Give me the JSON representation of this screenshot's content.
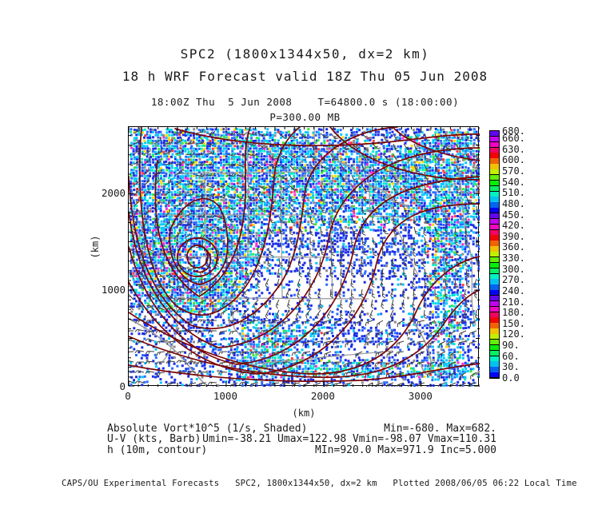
{
  "header": {
    "title_line1": "SPC2 (1800x1344x50, dx=2 km)",
    "title_line2": "18 h WRF Forecast valid 18Z Thu 05 Jun 2008",
    "valid_line": "18:00Z Thu  5 Jun 2008    T=64800.0 s (18:00:00)",
    "level_line": "P=300.00 MB"
  },
  "plot": {
    "x_axis_unit": "(km)",
    "y_axis_unit": "(km)",
    "x_ticks": [
      {
        "v": 0,
        "label": "0"
      },
      {
        "v": 1000,
        "label": "1000"
      },
      {
        "v": 2000,
        "label": "2000"
      },
      {
        "v": 3000,
        "label": "3000"
      }
    ],
    "y_ticks": [
      {
        "v": 0,
        "label": "0"
      },
      {
        "v": 1000,
        "label": "1000"
      },
      {
        "v": 2000,
        "label": "2000"
      }
    ],
    "x_range_km": [
      0,
      3600
    ],
    "y_range_km": [
      0,
      2688
    ]
  },
  "colorbar": {
    "min": 0,
    "max": 680,
    "tick_interval": 30,
    "ticks": [
      {
        "v": 680,
        "label": "680."
      },
      {
        "v": 660,
        "label": "660."
      },
      {
        "v": 630,
        "label": "630."
      },
      {
        "v": 600,
        "label": "600."
      },
      {
        "v": 570,
        "label": "570."
      },
      {
        "v": 540,
        "label": "540."
      },
      {
        "v": 510,
        "label": "510."
      },
      {
        "v": 480,
        "label": "480."
      },
      {
        "v": 450,
        "label": "450."
      },
      {
        "v": 420,
        "label": "420."
      },
      {
        "v": 390,
        "label": "390."
      },
      {
        "v": 360,
        "label": "360."
      },
      {
        "v": 330,
        "label": "330."
      },
      {
        "v": 300,
        "label": "300."
      },
      {
        "v": 270,
        "label": "270."
      },
      {
        "v": 240,
        "label": "240."
      },
      {
        "v": 210,
        "label": "210."
      },
      {
        "v": 180,
        "label": "180."
      },
      {
        "v": 150,
        "label": "150."
      },
      {
        "v": 120,
        "label": "120."
      },
      {
        "v": 90,
        "label": "90."
      },
      {
        "v": 60,
        "label": "60."
      },
      {
        "v": 30,
        "label": "30."
      },
      {
        "v": 0,
        "label": "0.0"
      }
    ]
  },
  "legend": {
    "rows": [
      {
        "label": "Absolute Vort*10^5 (1/s, Shaded)",
        "stats": "Min=-680. Max=682."
      },
      {
        "label": "U-V (kts, Barb)",
        "stats": "Umin=-38.21 Umax=122.98 Vmin=-98.07 Vmax=110.31"
      },
      {
        "label": "h (10m, contour)",
        "stats": "MIn=920.0 Max=971.9 Inc=5.000"
      }
    ]
  },
  "footer": {
    "text": "CAPS/OU Experimental Forecasts   SPC2, 1800x1344x50, dx=2 km   Plotted 2008/06/05 06:22 Local Time"
  },
  "colors": {
    "contour": "#7a0505",
    "state_border": "#9e9e9e",
    "wind_barb": "#3d3d3d",
    "shade_blue": "#1b2fe8",
    "shade_blue2": "#2b6bff",
    "shade_cyan": "#00c8ff",
    "shade_teal": "#00eec4",
    "shade_green": "#39e839",
    "shade_yellow": "#ffd900",
    "shade_gray": "#8c8c8c",
    "frame": "#000000"
  },
  "chart_data": {
    "type": "heatmap",
    "title": "SPC2 (1800x1344x50, dx=2 km)",
    "subtitle": "18 h WRF Forecast valid 18Z Thu 05 Jun 2008",
    "valid_time": "18:00Z Thu 5 Jun 2008",
    "model_seconds": "T=64800.0 s (18:00:00)",
    "pressure_level_mb": 300.0,
    "xlabel": "(km)",
    "ylabel": "(km)",
    "xlim": [
      0,
      3600
    ],
    "ylim": [
      0,
      2688
    ],
    "x_tick_labels": [
      "0",
      "1000",
      "2000",
      "3000"
    ],
    "y_tick_labels": [
      "0",
      "1000",
      "2000"
    ],
    "colorbar_range": [
      0,
      680
    ],
    "colorbar_tick_values": [
      680,
      660,
      630,
      600,
      570,
      540,
      510,
      480,
      450,
      420,
      390,
      360,
      330,
      300,
      270,
      240,
      210,
      180,
      150,
      120,
      90,
      60,
      30,
      0
    ],
    "layers": [
      {
        "name": "absolute-vorticity-shading",
        "quantity": "Absolute Vort*10^5",
        "units": "1/s",
        "style": "shaded",
        "min": -680,
        "max": 682
      },
      {
        "name": "wind-barbs",
        "quantity": "U-V",
        "units": "kts",
        "style": "barb",
        "umin": -38.21,
        "umax": 122.98,
        "vmin": -98.07,
        "vmax": 110.31
      },
      {
        "name": "height-contours",
        "quantity": "h",
        "units": "10m",
        "style": "contour",
        "min": 920.0,
        "max": 971.9,
        "increment": 5.0
      }
    ],
    "legend_position": "below-plot",
    "grid": false
  }
}
